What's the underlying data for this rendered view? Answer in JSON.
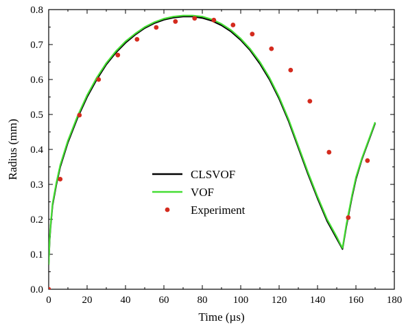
{
  "chart_data": {
    "type": "line",
    "title": "",
    "xlabel": "Time (µs)",
    "ylabel": "Radius (mm)",
    "xlim": [
      0,
      180
    ],
    "ylim": [
      0,
      0.8
    ],
    "xticks": [
      0,
      20,
      40,
      60,
      80,
      100,
      120,
      140,
      160,
      180
    ],
    "yticks": [
      0.0,
      0.1,
      0.2,
      0.3,
      0.4,
      0.5,
      0.6,
      0.7,
      0.8
    ],
    "xtick_labels": [
      "0",
      "20",
      "40",
      "60",
      "80",
      "100",
      "120",
      "140",
      "160",
      "180"
    ],
    "ytick_labels": [
      "0.0",
      "0.1",
      "0.2",
      "0.3",
      "0.4",
      "0.5",
      "0.6",
      "0.7",
      "0.8"
    ],
    "grid": false,
    "legend_position": "center-left",
    "series": [
      {
        "name": "CLSVOF",
        "kind": "line",
        "color": "#000000",
        "x": [
          0,
          0.5,
          1,
          2,
          4,
          6,
          8,
          10,
          15,
          20,
          25,
          30,
          35,
          40,
          45,
          50,
          55,
          60,
          65,
          70,
          75,
          80,
          85,
          90,
          95,
          100,
          105,
          110,
          115,
          120,
          125,
          130,
          135,
          140,
          145,
          148,
          150,
          152,
          153,
          155,
          158,
          160,
          163,
          166,
          170
        ],
        "y": [
          0.07,
          0.14,
          0.18,
          0.24,
          0.3,
          0.35,
          0.385,
          0.42,
          0.49,
          0.55,
          0.6,
          0.643,
          0.677,
          0.705,
          0.728,
          0.747,
          0.761,
          0.771,
          0.777,
          0.78,
          0.78,
          0.776,
          0.768,
          0.755,
          0.737,
          0.713,
          0.683,
          0.645,
          0.6,
          0.545,
          0.48,
          0.405,
          0.33,
          0.26,
          0.195,
          0.165,
          0.145,
          0.125,
          0.115,
          0.18,
          0.265,
          0.315,
          0.37,
          0.415,
          0.475
        ]
      },
      {
        "name": "VOF",
        "kind": "line",
        "color": "#44dd33",
        "x": [
          0,
          0.5,
          1,
          2,
          4,
          6,
          8,
          10,
          15,
          20,
          25,
          30,
          35,
          40,
          45,
          50,
          55,
          60,
          65,
          70,
          75,
          80,
          85,
          90,
          95,
          100,
          105,
          110,
          115,
          120,
          125,
          130,
          135,
          140,
          145,
          148,
          150,
          152,
          153,
          155,
          158,
          160,
          163,
          166,
          170
        ],
        "y": [
          0.07,
          0.145,
          0.185,
          0.245,
          0.305,
          0.355,
          0.39,
          0.425,
          0.495,
          0.555,
          0.605,
          0.647,
          0.681,
          0.709,
          0.731,
          0.75,
          0.764,
          0.774,
          0.78,
          0.783,
          0.783,
          0.78,
          0.772,
          0.759,
          0.741,
          0.717,
          0.687,
          0.65,
          0.605,
          0.55,
          0.485,
          0.41,
          0.335,
          0.265,
          0.2,
          0.17,
          0.15,
          0.128,
          0.118,
          0.185,
          0.27,
          0.32,
          0.373,
          0.418,
          0.478
        ]
      },
      {
        "name": "Experiment",
        "kind": "scatter",
        "color": "#d42b1e",
        "x": [
          0,
          6,
          16,
          26,
          36,
          46,
          56,
          66,
          76,
          86,
          96,
          106,
          116,
          126,
          136,
          146,
          156,
          166
        ],
        "y": [
          0.0,
          0.315,
          0.498,
          0.6,
          0.67,
          0.715,
          0.749,
          0.766,
          0.775,
          0.77,
          0.756,
          0.73,
          0.688,
          0.627,
          0.538,
          0.392,
          0.205,
          0.368
        ]
      }
    ]
  }
}
